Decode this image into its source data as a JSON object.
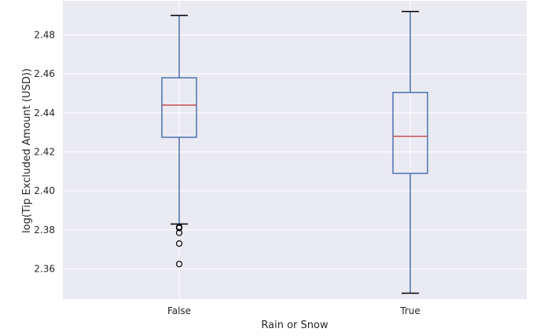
{
  "chart_data": {
    "type": "boxplot",
    "title": "",
    "xlabel": "Rain or Snow",
    "ylabel": "log(Tip Excluded Amount (USD))",
    "ylim": [
      2.3445,
      2.4975
    ],
    "yticks": [
      "2.36",
      "2.38",
      "2.40",
      "2.42",
      "2.44",
      "2.46",
      "2.48"
    ],
    "grid": true,
    "colors": {
      "background": "#EAEAF2",
      "grid": "#FFFFFF",
      "box": "#4C72B0",
      "median": "#C44E52",
      "whisker": "#4C72B0",
      "cap": "#000000",
      "flier": "#000000"
    },
    "categories": [
      "False",
      "True"
    ],
    "boxes": [
      {
        "category": "False",
        "whislo": 2.383,
        "q1": 2.4275,
        "median": 2.444,
        "q3": 2.458,
        "whishi": 2.49,
        "fliers": [
          2.3815,
          2.381,
          2.3785,
          2.373,
          2.3625
        ]
      },
      {
        "category": "True",
        "whislo": 2.3475,
        "q1": 2.409,
        "median": 2.428,
        "q3": 2.4505,
        "whishi": 2.492,
        "fliers": []
      }
    ]
  }
}
